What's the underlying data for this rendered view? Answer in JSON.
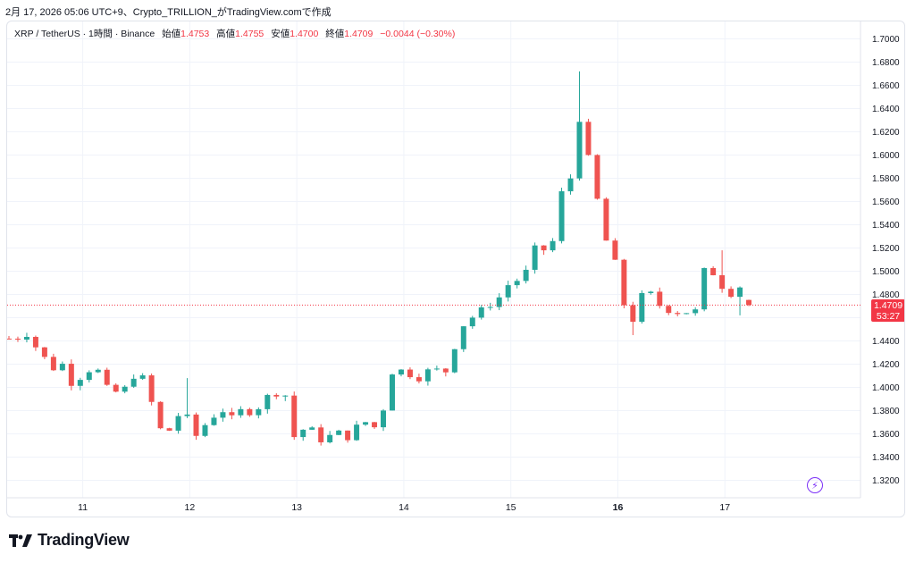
{
  "caption": "2月 17, 2026 05:06 UTC+9、Crypto_TRILLION_がTradingView.comで作成",
  "legend": {
    "symbol": "XRP / TetherUS · 1時間 · Binance",
    "open_label": "始値",
    "open": "1.4753",
    "high_label": "高値",
    "high": "1.4755",
    "low_label": "安値",
    "low": "1.4700",
    "close_label": "終値",
    "close": "1.4709",
    "change": "−0.0044 (−0.30%)"
  },
  "price_tag": {
    "price": "1.4709",
    "countdown": "53:27"
  },
  "logo_text": "TradingView",
  "colors": {
    "up": "#26a69a",
    "down": "#ef5350",
    "grid": "#f0f3fa",
    "text": "#131722",
    "current_line": "#f23645"
  },
  "chart_data": {
    "type": "candlestick",
    "interval": "1h",
    "ylim": [
      1.305,
      1.715
    ],
    "y_ticks": [
      "1.7000",
      "1.6800",
      "1.6600",
      "1.6400",
      "1.6200",
      "1.6000",
      "1.5800",
      "1.5600",
      "1.5400",
      "1.5200",
      "1.5000",
      "1.4800",
      "1.4600",
      "1.4400",
      "1.4200",
      "1.4000",
      "1.3800",
      "1.3600",
      "1.3400",
      "1.3200"
    ],
    "x_ticks": [
      {
        "label": "11",
        "x": 10.0,
        "bold": false
      },
      {
        "label": "12",
        "x": 11.0,
        "bold": false
      },
      {
        "label": "13",
        "x": 12.0,
        "bold": false
      },
      {
        "label": "14",
        "x": 13.0,
        "bold": false
      },
      {
        "label": "15",
        "x": 14.0,
        "bold": false
      },
      {
        "label": "16",
        "x": 15.0,
        "bold": true
      },
      {
        "label": "17",
        "x": 16.0,
        "bold": false
      }
    ],
    "xlim": [
      9.31,
      16.95
    ],
    "current_price": 1.4709,
    "path": [
      [
        9.31,
        1.442
      ],
      [
        9.36,
        1.448
      ],
      [
        9.41,
        1.44
      ],
      [
        9.46,
        1.447
      ],
      [
        9.51,
        1.444
      ],
      [
        9.56,
        1.435
      ],
      [
        9.61,
        1.42
      ],
      [
        9.66,
        1.428
      ],
      [
        9.71,
        1.418
      ],
      [
        9.76,
        1.413
      ],
      [
        9.81,
        1.42
      ],
      [
        9.86,
        1.408
      ],
      [
        9.91,
        1.402
      ],
      [
        9.96,
        1.413
      ],
      [
        10.01,
        1.4
      ],
      [
        10.06,
        1.415
      ],
      [
        10.11,
        1.428
      ],
      [
        10.16,
        1.407
      ],
      [
        10.21,
        1.398
      ],
      [
        10.26,
        1.402
      ],
      [
        10.31,
        1.396
      ],
      [
        10.36,
        1.395
      ],
      [
        10.41,
        1.401
      ],
      [
        10.46,
        1.408
      ],
      [
        10.51,
        1.414
      ],
      [
        10.56,
        1.408
      ],
      [
        10.61,
        1.4
      ],
      [
        10.66,
        1.38
      ],
      [
        10.71,
        1.362
      ],
      [
        10.76,
        1.368
      ],
      [
        10.81,
        1.363
      ],
      [
        10.86,
        1.368
      ],
      [
        10.91,
        1.38
      ],
      [
        10.96,
        1.372
      ],
      [
        11.01,
        1.378
      ],
      [
        11.06,
        1.358
      ],
      [
        11.11,
        1.345
      ],
      [
        11.16,
        1.38
      ],
      [
        11.21,
        1.372
      ],
      [
        11.26,
        1.383
      ],
      [
        11.31,
        1.38
      ],
      [
        11.36,
        1.368
      ],
      [
        11.41,
        1.376
      ],
      [
        11.46,
        1.382
      ],
      [
        11.51,
        1.375
      ],
      [
        11.56,
        1.379
      ],
      [
        11.61,
        1.381
      ],
      [
        11.66,
        1.384
      ],
      [
        11.71,
        1.388
      ],
      [
        11.76,
        1.401
      ],
      [
        11.81,
        1.395
      ],
      [
        11.86,
        1.403
      ],
      [
        11.91,
        1.388
      ],
      [
        11.96,
        1.36
      ],
      [
        12.01,
        1.352
      ],
      [
        12.06,
        1.364
      ],
      [
        12.11,
        1.358
      ],
      [
        12.16,
        1.366
      ],
      [
        12.21,
        1.352
      ],
      [
        12.26,
        1.361
      ],
      [
        12.31,
        1.358
      ],
      [
        12.36,
        1.366
      ],
      [
        12.41,
        1.358
      ],
      [
        12.46,
        1.354
      ],
      [
        12.51,
        1.364
      ],
      [
        12.56,
        1.366
      ],
      [
        12.61,
        1.365
      ],
      [
        12.66,
        1.373
      ],
      [
        12.71,
        1.363
      ],
      [
        12.76,
        1.372
      ],
      [
        12.81,
        1.382
      ],
      [
        12.86,
        1.405
      ],
      [
        12.91,
        1.418
      ],
      [
        12.96,
        1.414
      ],
      [
        13.01,
        1.416
      ],
      [
        13.06,
        1.411
      ],
      [
        13.11,
        1.405
      ],
      [
        13.16,
        1.41
      ],
      [
        13.21,
        1.415
      ],
      [
        13.26,
        1.412
      ],
      [
        13.31,
        1.415
      ],
      [
        13.36,
        1.41
      ],
      [
        13.41,
        1.416
      ],
      [
        13.46,
        1.43
      ],
      [
        13.51,
        1.448
      ],
      [
        13.56,
        1.454
      ],
      [
        13.61,
        1.468
      ],
      [
        13.66,
        1.456
      ],
      [
        13.71,
        1.47
      ],
      [
        13.76,
        1.458
      ],
      [
        13.81,
        1.472
      ],
      [
        13.86,
        1.48
      ],
      [
        13.91,
        1.476
      ],
      [
        13.96,
        1.485
      ],
      [
        14.01,
        1.496
      ],
      [
        14.06,
        1.492
      ],
      [
        14.11,
        1.502
      ],
      [
        14.16,
        1.498
      ],
      [
        14.21,
        1.516
      ],
      [
        14.26,
        1.527
      ],
      [
        14.31,
        1.518
      ],
      [
        14.36,
        1.535
      ],
      [
        14.41,
        1.52
      ],
      [
        14.46,
        1.56
      ],
      [
        14.51,
        1.585
      ],
      [
        14.56,
        1.58
      ],
      [
        14.61,
        1.65
      ],
      [
        14.66,
        1.62
      ],
      [
        14.71,
        1.6
      ],
      [
        14.76,
        1.59
      ],
      [
        14.81,
        1.56
      ],
      [
        14.86,
        1.52
      ],
      [
        14.91,
        1.53
      ],
      [
        14.96,
        1.51
      ],
      [
        15.01,
        1.5
      ],
      [
        15.06,
        1.47
      ],
      [
        15.11,
        1.455
      ],
      [
        15.16,
        1.46
      ],
      [
        15.21,
        1.475
      ],
      [
        15.26,
        1.488
      ],
      [
        15.31,
        1.48
      ],
      [
        15.36,
        1.462
      ],
      [
        15.41,
        1.476
      ],
      [
        15.46,
        1.47
      ],
      [
        15.51,
        1.458
      ],
      [
        15.56,
        1.465
      ],
      [
        15.61,
        1.46
      ],
      [
        15.66,
        1.468
      ],
      [
        15.71,
        1.464
      ],
      [
        15.76,
        1.47
      ],
      [
        15.81,
        1.502
      ],
      [
        15.86,
        1.489
      ],
      [
        15.91,
        1.504
      ],
      [
        15.96,
        1.484
      ],
      [
        16.01,
        1.495
      ],
      [
        16.06,
        1.48
      ],
      [
        16.11,
        1.49
      ],
      [
        16.16,
        1.485
      ],
      [
        16.21,
        1.476
      ],
      [
        16.26,
        1.4753
      ],
      [
        16.29,
        1.4709
      ]
    ],
    "spikes": [
      [
        14.63,
        1.672
      ],
      [
        14.66,
        1.595
      ],
      [
        11.01,
        1.408
      ],
      [
        15.16,
        1.445
      ],
      [
        16.13,
        1.462
      ],
      [
        15.96,
        1.518
      ]
    ]
  }
}
